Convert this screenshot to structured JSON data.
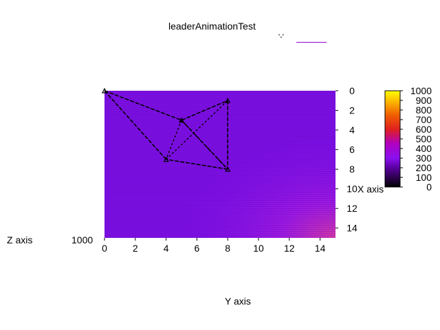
{
  "chart_data": {
    "type": "heatmap",
    "title": "leaderAnimationTest",
    "legend_key": "'-'",
    "legend_color": "#9400d3",
    "xlabel": "Y axis",
    "ylabel": "X axis",
    "zlabel": "Z axis",
    "z_tick_text": "1000",
    "x_ticks": [
      0,
      2,
      4,
      6,
      8,
      10,
      12,
      14
    ],
    "y_ticks": [
      0,
      2,
      4,
      6,
      8,
      10,
      12,
      14
    ],
    "xlim": [
      0,
      15
    ],
    "ylim": [
      0,
      15
    ],
    "colorbar": {
      "ticks": [
        0,
        100,
        200,
        300,
        400,
        500,
        600,
        700,
        800,
        900,
        1000
      ],
      "range": [
        0,
        1000
      ]
    },
    "heatmap_note": "values near 200 across most of the grid, rising toward the bottom-right corner",
    "points": [
      {
        "x": 0,
        "y": 0
      },
      {
        "x": 5,
        "y": 3
      },
      {
        "x": 8,
        "y": 1
      },
      {
        "x": 8,
        "y": 8
      },
      {
        "x": 4,
        "y": 7
      }
    ],
    "solid_edges": [
      [
        0,
        1
      ],
      [
        1,
        2
      ],
      [
        2,
        3
      ],
      [
        3,
        4
      ],
      [
        4,
        0
      ],
      [
        1,
        3
      ]
    ],
    "dashed_edges": [
      [
        1,
        4
      ],
      [
        4,
        2
      ],
      [
        1,
        3
      ]
    ]
  }
}
